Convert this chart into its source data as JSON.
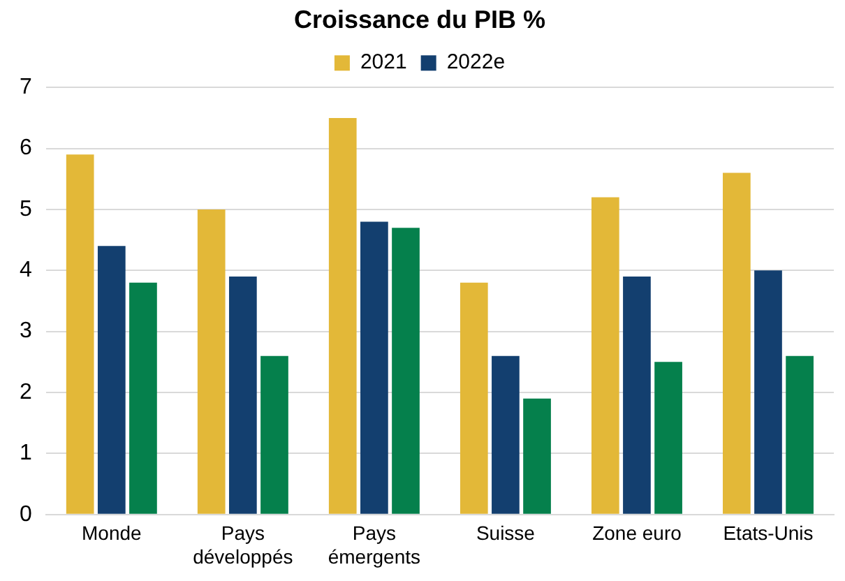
{
  "chart_data": {
    "type": "bar",
    "title": "Croissance du PIB %",
    "categories": [
      "Monde",
      "Pays développés",
      "Pays émergents",
      "Suisse",
      "Zone euro",
      "Etats-Unis"
    ],
    "series": [
      {
        "name": "2021",
        "color": "#e3b838",
        "values": [
          5.9,
          5.0,
          6.5,
          3.8,
          5.2,
          5.6
        ]
      },
      {
        "name": "2022e",
        "color": "#133f6f",
        "values": [
          4.4,
          3.9,
          4.8,
          2.6,
          3.9,
          4.0
        ]
      },
      {
        "color": "#05804c",
        "values": [
          3.8,
          2.6,
          4.7,
          1.9,
          2.5,
          2.6
        ]
      }
    ],
    "ylim": [
      0,
      7
    ],
    "yticks": [
      0,
      1,
      2,
      3,
      4,
      5,
      6,
      7
    ],
    "grid": "y",
    "legend": "top"
  }
}
